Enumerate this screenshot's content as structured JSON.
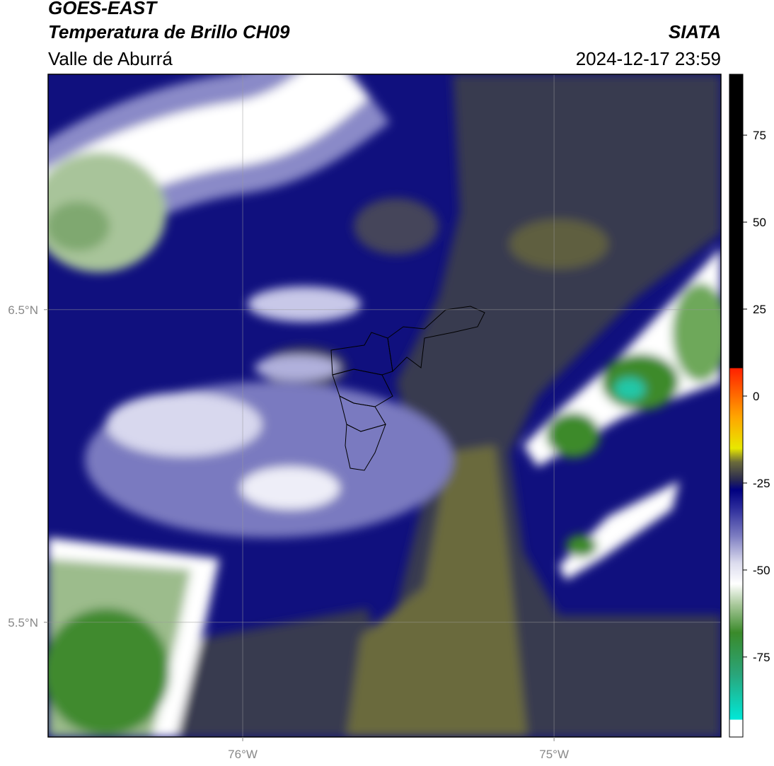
{
  "header": {
    "source": "GOES-EAST",
    "product": "Temperatura de Brillo CH09",
    "agency": "SIATA",
    "region": "Valle de Aburrá",
    "datetime": "2024-12-17 23:59"
  },
  "map": {
    "xlim": [
      -76.625,
      -74.464
    ],
    "ylim": [
      5.133,
      7.253
    ],
    "xticks": [
      {
        "value": -76,
        "label": "76°W"
      },
      {
        "value": -75,
        "label": "75°W"
      }
    ],
    "yticks": [
      {
        "value": 6.5,
        "label": "6.5°N"
      },
      {
        "value": 5.5,
        "label": "5.5°N"
      }
    ],
    "grid": true
  },
  "colorbar": {
    "lim": [
      -98,
      92.5
    ],
    "ticks": [
      75,
      50,
      25,
      0,
      -25,
      -50,
      -75
    ],
    "colormap": [
      {
        "value": -98,
        "color": "#ffffff"
      },
      {
        "value": -93,
        "color": "#ffffff"
      },
      {
        "value": -93,
        "color": "#00e8d8"
      },
      {
        "value": -80,
        "color": "#2aa57a"
      },
      {
        "value": -68,
        "color": "#3a8a2a"
      },
      {
        "value": -60,
        "color": "#a8c89a"
      },
      {
        "value": -54,
        "color": "#ffffff"
      },
      {
        "value": -48,
        "color": "#dcdcee"
      },
      {
        "value": -40,
        "color": "#7a7ac0"
      },
      {
        "value": -32,
        "color": "#2a2a9a"
      },
      {
        "value": -27,
        "color": "#000080"
      },
      {
        "value": -24,
        "color": "#2a2a50"
      },
      {
        "value": -19,
        "color": "#6a6a3a"
      },
      {
        "value": -15,
        "color": "#e8e800"
      },
      {
        "value": -6,
        "color": "#ffa500"
      },
      {
        "value": 8,
        "color": "#ff2000"
      },
      {
        "value": 8,
        "color": "#000000"
      },
      {
        "value": 92.5,
        "color": "#000000"
      }
    ]
  }
}
